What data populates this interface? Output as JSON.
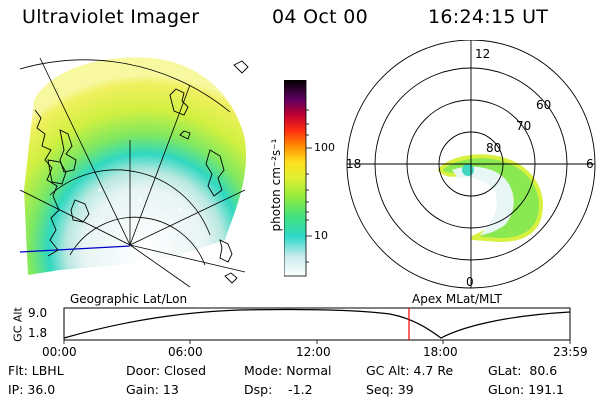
{
  "header": {
    "title": "Ultraviolet Imager",
    "date": "04 Oct 00",
    "time": "16:24:15 UT"
  },
  "colorbar": {
    "unit_label": "photon cm⁻²s⁻¹",
    "ticks": [
      "100",
      "10"
    ]
  },
  "polar": {
    "mlt_labels": {
      "top": "12",
      "left": "18",
      "right": "6",
      "bottom": "0"
    },
    "lat_labels": [
      "60",
      "70",
      "80"
    ]
  },
  "panel_labels": {
    "left": "Geographic Lat/Lon",
    "right": "Apex MLat/MLT"
  },
  "orbit_plot": {
    "ylabel": "GC Alt",
    "ymax_label": "9.0",
    "ymin_label": "1.8",
    "time_ticks": [
      "00:00",
      "06:00",
      "12:00",
      "18:00",
      "23:59"
    ],
    "cursor_color": "#ff0000"
  },
  "info": {
    "flt": "Flt: LBHL",
    "ip": "IP: 36.0",
    "door": "Door: Closed",
    "gain": "Gain: 13",
    "mode": "Mode: Normal",
    "dsp": "Dsp:    -1.2",
    "gc_alt": "GC Alt: 4.7 Re",
    "seq": "Seq: 39",
    "glat": "GLat:  80.6",
    "glon": "GLon: 191.1"
  }
}
